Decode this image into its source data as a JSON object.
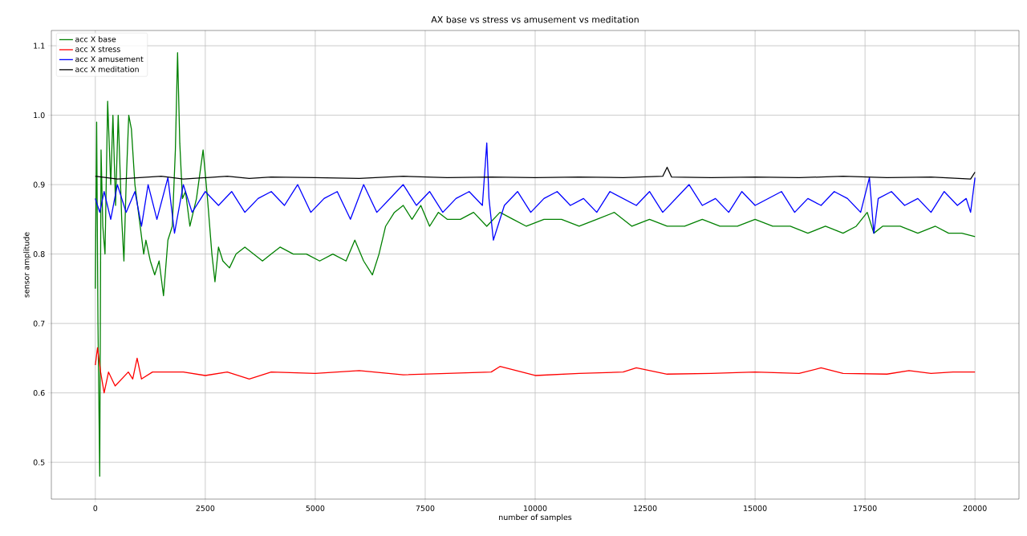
{
  "chart_data": {
    "type": "line",
    "title": "AX base vs stress vs amusement vs meditation",
    "xlabel": "number of samples",
    "ylabel": "sensor amplitude",
    "xlim": [
      -1000,
      21000
    ],
    "xticks": [
      0,
      2500,
      5000,
      7500,
      10000,
      12500,
      15000,
      17500,
      20000
    ],
    "ylim": [
      0.447,
      1.122
    ],
    "yticks": [
      0.5,
      0.6,
      0.7,
      0.8,
      0.9,
      {
        "value": 1,
        "label": "1.0"
      },
      1.1
    ],
    "grid": true,
    "legend": "top left",
    "marker": "none",
    "line_style": "solid",
    "series": [
      {
        "name": "acc X base",
        "color": "#008000",
        "x": [
          0,
          30,
          60,
          100,
          130,
          170,
          220,
          280,
          350,
          400,
          460,
          520,
          600,
          650,
          700,
          760,
          820,
          900,
          1000,
          1100,
          1150,
          1250,
          1350,
          1450,
          1550,
          1650,
          1750,
          1820,
          1870,
          1920,
          1980,
          2050,
          2150,
          2300,
          2450,
          2550,
          2650,
          2720,
          2800,
          2900,
          3050,
          3200,
          3400,
          3600,
          3800,
          4000,
          4200,
          4500,
          4800,
          5100,
          5400,
          5700,
          5900,
          6100,
          6300,
          6450,
          6600,
          6800,
          7000,
          7200,
          7400,
          7600,
          7800,
          8000,
          8300,
          8600,
          8900,
          9200,
          9500,
          9800,
          10200,
          10600,
          11000,
          11400,
          11800,
          12200,
          12600,
          13000,
          13400,
          13800,
          14200,
          14600,
          15000,
          15400,
          15800,
          16200,
          16600,
          17000,
          17300,
          17550,
          17700,
          17900,
          18300,
          18700,
          19100,
          19400,
          19700,
          20000
        ],
        "values": [
          0.75,
          0.99,
          0.7,
          0.48,
          0.95,
          0.84,
          0.8,
          1.02,
          0.9,
          1.0,
          0.87,
          1.0,
          0.85,
          0.79,
          0.9,
          1.0,
          0.98,
          0.9,
          0.85,
          0.8,
          0.82,
          0.79,
          0.77,
          0.79,
          0.74,
          0.82,
          0.84,
          0.95,
          1.09,
          0.96,
          0.88,
          0.89,
          0.84,
          0.88,
          0.95,
          0.88,
          0.8,
          0.76,
          0.81,
          0.79,
          0.78,
          0.8,
          0.81,
          0.8,
          0.79,
          0.8,
          0.81,
          0.8,
          0.8,
          0.79,
          0.8,
          0.79,
          0.82,
          0.79,
          0.77,
          0.8,
          0.84,
          0.86,
          0.87,
          0.85,
          0.87,
          0.84,
          0.86,
          0.85,
          0.85,
          0.86,
          0.84,
          0.86,
          0.85,
          0.84,
          0.85,
          0.85,
          0.84,
          0.85,
          0.86,
          0.84,
          0.85,
          0.84,
          0.84,
          0.85,
          0.84,
          0.84,
          0.85,
          0.84,
          0.84,
          0.83,
          0.84,
          0.83,
          0.84,
          0.86,
          0.83,
          0.84,
          0.84,
          0.83,
          0.84,
          0.83,
          0.83,
          0.825
        ]
      },
      {
        "name": "acc X stress",
        "color": "#ff0000",
        "x": [
          0,
          50,
          120,
          200,
          300,
          450,
          600,
          750,
          850,
          950,
          1050,
          1300,
          1600,
          2000,
          2500,
          3000,
          3500,
          4000,
          5000,
          6000,
          7000,
          8000,
          9000,
          9200,
          10000,
          11000,
          12000,
          12300,
          13000,
          14000,
          15000,
          16000,
          16500,
          17000,
          18000,
          18500,
          19000,
          19500,
          20000
        ],
        "values": [
          0.64,
          0.665,
          0.63,
          0.6,
          0.63,
          0.61,
          0.62,
          0.63,
          0.62,
          0.65,
          0.62,
          0.63,
          0.63,
          0.63,
          0.625,
          0.63,
          0.62,
          0.63,
          0.628,
          0.632,
          0.626,
          0.628,
          0.63,
          0.638,
          0.625,
          0.628,
          0.63,
          0.636,
          0.627,
          0.628,
          0.63,
          0.628,
          0.636,
          0.628,
          0.627,
          0.632,
          0.628,
          0.63,
          0.63
        ]
      },
      {
        "name": "acc X amusement",
        "color": "#0000ff",
        "x": [
          0,
          100,
          200,
          350,
          500,
          700,
          900,
          1050,
          1200,
          1400,
          1650,
          1800,
          2000,
          2200,
          2500,
          2800,
          3100,
          3400,
          3700,
          4000,
          4300,
          4600,
          4900,
          5200,
          5500,
          5800,
          6100,
          6400,
          6700,
          7000,
          7300,
          7600,
          7900,
          8200,
          8500,
          8800,
          8900,
          8950,
          9050,
          9300,
          9600,
          9900,
          10200,
          10500,
          10800,
          11100,
          11400,
          11700,
          12000,
          12300,
          12600,
          12900,
          13200,
          13500,
          13800,
          14100,
          14400,
          14700,
          15000,
          15300,
          15600,
          15900,
          16200,
          16500,
          16800,
          17100,
          17400,
          17600,
          17700,
          17800,
          18100,
          18400,
          18700,
          19000,
          19300,
          19600,
          19800,
          19900,
          20000
        ],
        "values": [
          0.88,
          0.86,
          0.89,
          0.85,
          0.9,
          0.86,
          0.89,
          0.84,
          0.9,
          0.85,
          0.91,
          0.83,
          0.9,
          0.86,
          0.89,
          0.87,
          0.89,
          0.86,
          0.88,
          0.89,
          0.87,
          0.9,
          0.86,
          0.88,
          0.89,
          0.85,
          0.9,
          0.86,
          0.88,
          0.9,
          0.87,
          0.89,
          0.86,
          0.88,
          0.89,
          0.87,
          0.96,
          0.88,
          0.82,
          0.87,
          0.89,
          0.86,
          0.88,
          0.89,
          0.87,
          0.88,
          0.86,
          0.89,
          0.88,
          0.87,
          0.89,
          0.86,
          0.88,
          0.9,
          0.87,
          0.88,
          0.86,
          0.89,
          0.87,
          0.88,
          0.89,
          0.86,
          0.88,
          0.87,
          0.89,
          0.88,
          0.86,
          0.91,
          0.83,
          0.88,
          0.89,
          0.87,
          0.88,
          0.86,
          0.89,
          0.87,
          0.88,
          0.86,
          0.91
        ]
      },
      {
        "name": "acc X meditation",
        "color": "#000000",
        "x": [
          0,
          500,
          1000,
          1500,
          2000,
          2500,
          3000,
          3500,
          4000,
          5000,
          6000,
          7000,
          8000,
          9000,
          10000,
          11000,
          12000,
          12900,
          13000,
          13100,
          14000,
          15000,
          16000,
          17000,
          18000,
          19000,
          19900,
          20000
        ],
        "values": [
          0.912,
          0.908,
          0.91,
          0.912,
          0.908,
          0.91,
          0.912,
          0.909,
          0.911,
          0.91,
          0.909,
          0.912,
          0.91,
          0.911,
          0.91,
          0.911,
          0.91,
          0.912,
          0.925,
          0.911,
          0.91,
          0.911,
          0.91,
          0.912,
          0.91,
          0.911,
          0.908,
          0.918
        ]
      }
    ]
  }
}
